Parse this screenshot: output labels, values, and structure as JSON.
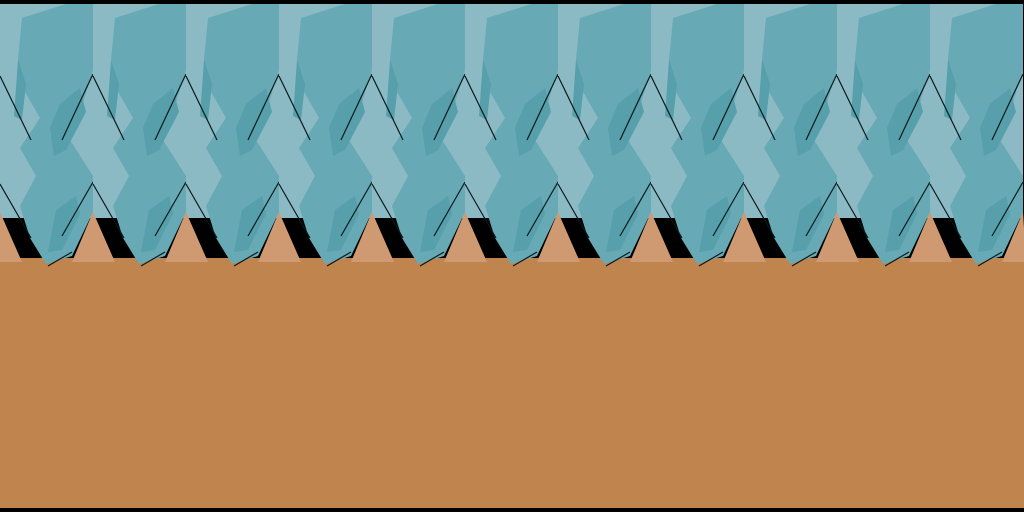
{
  "scene": {
    "frame_color": "#000000",
    "ground_color": "#c0854f",
    "ground_highlight_color": "#cf9a72",
    "ice_light_color": "#8bbac5",
    "ice_mid_color": "#67a9b5",
    "ice_dark_color": "#569fab",
    "edge_line_color": "#0b1a1c",
    "tile_count": 11,
    "tile_icon": "ice-cliff-tile"
  }
}
